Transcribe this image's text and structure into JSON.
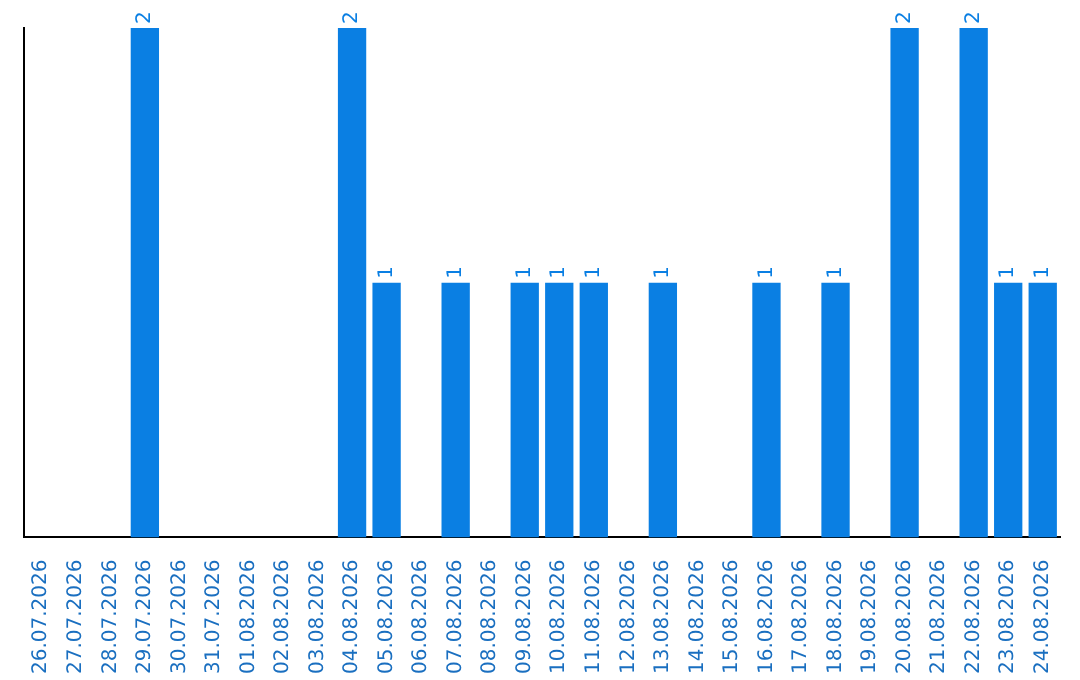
{
  "chart_data": {
    "type": "bar",
    "categories": [
      "26.07.2026",
      "27.07.2026",
      "28.07.2026",
      "29.07.2026",
      "30.07.2026",
      "31.07.2026",
      "01.08.2026",
      "02.08.2026",
      "03.08.2026",
      "04.08.2026",
      "05.08.2026",
      "06.08.2026",
      "07.08.2026",
      "08.08.2026",
      "09.08.2026",
      "10.08.2026",
      "11.08.2026",
      "12.08.2026",
      "13.08.2026",
      "14.08.2026",
      "15.08.2026",
      "16.08.2026",
      "17.08.2026",
      "18.08.2026",
      "19.08.2026",
      "20.08.2026",
      "21.08.2026",
      "22.08.2026",
      "23.08.2026",
      "24.08.2026"
    ],
    "values": [
      0,
      0,
      0,
      2,
      0,
      0,
      0,
      0,
      0,
      2,
      1,
      0,
      1,
      0,
      1,
      1,
      1,
      0,
      1,
      0,
      0,
      1,
      0,
      1,
      0,
      2,
      0,
      2,
      1,
      1
    ],
    "value_labels": [
      null,
      null,
      null,
      "2",
      null,
      null,
      null,
      null,
      null,
      "2",
      "1",
      null,
      "1",
      null,
      "1",
      "1",
      "1",
      null,
      "1",
      null,
      null,
      "1",
      null,
      "1",
      null,
      "2",
      null,
      "2",
      "1",
      "1"
    ],
    "color": "#0a7fe3",
    "ylim": [
      0,
      2
    ],
    "tick_labels": "x",
    "grid": false
  }
}
